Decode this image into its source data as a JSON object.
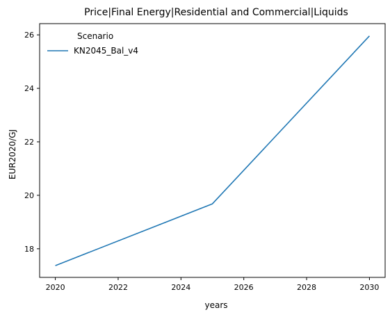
{
  "chart_data": {
    "type": "line",
    "title": "Price|Final Energy|Residential and Commercial|Liquids",
    "xlabel": "years",
    "ylabel": "EUR2020/GJ",
    "xlim": [
      2019.5,
      2030.5
    ],
    "ylim": [
      16.93,
      26.42
    ],
    "xticks": [
      2020,
      2022,
      2024,
      2026,
      2028,
      2030
    ],
    "yticks": [
      18,
      20,
      22,
      24,
      26
    ],
    "grid": false,
    "legend": {
      "title": "Scenario",
      "placement": "top-left"
    },
    "series": [
      {
        "name": "KN2045_Bal_v4",
        "color": "#1f77b4",
        "x": [
          2020,
          2025,
          2030
        ],
        "y": [
          17.37,
          19.68,
          25.96
        ]
      }
    ]
  }
}
